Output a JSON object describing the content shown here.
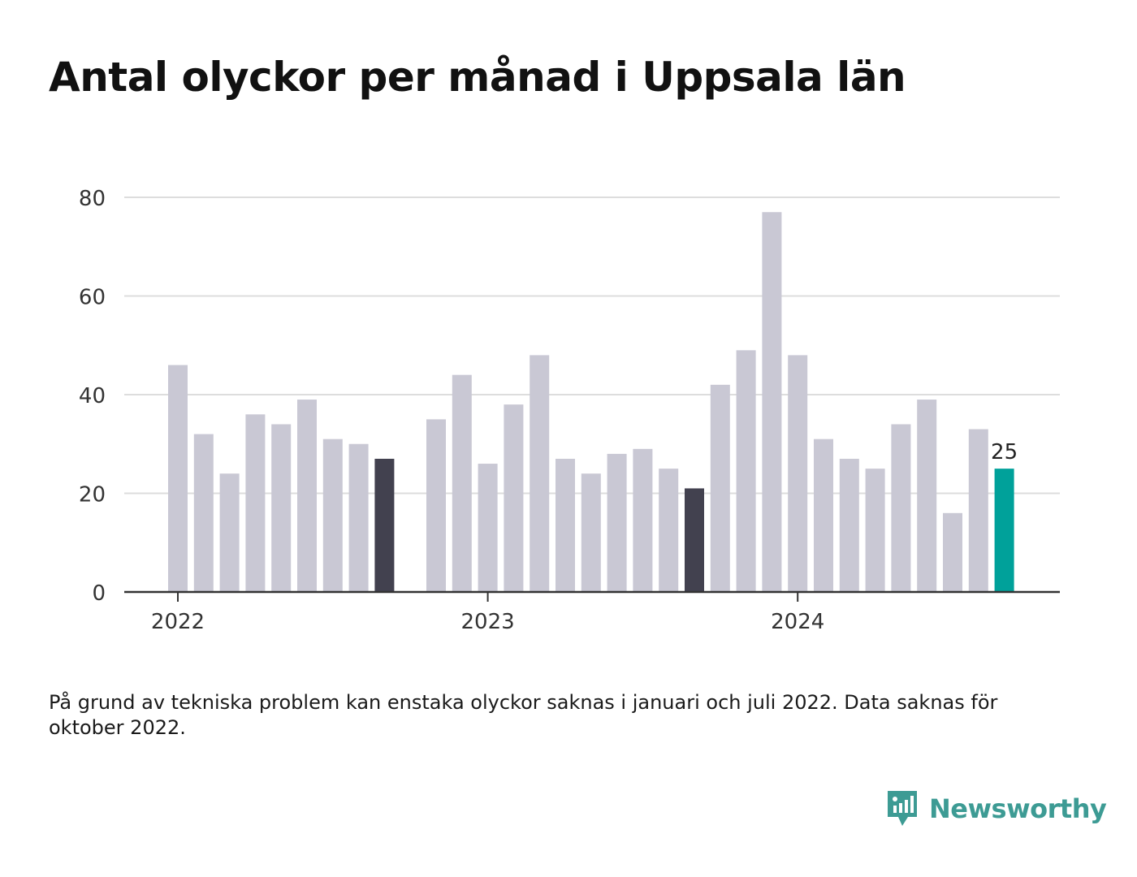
{
  "title": "Antal olyckor per månad i Uppsala län",
  "note": "På grund av tekniska problem kan enstaka olyckor saknas i januari och juli 2022. Data saknas för oktober 2022.",
  "brand": {
    "name": "Newsworthy",
    "icon": "newsworthy-logo-icon",
    "color": "#3d9b94"
  },
  "colors": {
    "bar": "#c9c8d4",
    "bar_dark": "#42414f",
    "bar_highlight": "#00a19a",
    "grid": "#dddddd",
    "axis": "#333333"
  },
  "chart_data": {
    "type": "bar",
    "title": "Antal olyckor per månad i Uppsala län",
    "xlabel": "",
    "ylabel": "",
    "ylim": [
      0,
      80
    ],
    "yticks": [
      "0",
      "20",
      "40",
      "60",
      "80"
    ],
    "xticks": [
      "2022",
      "2023",
      "2024"
    ],
    "grid": true,
    "categories": [
      "2022-01",
      "2022-02",
      "2022-03",
      "2022-04",
      "2022-05",
      "2022-06",
      "2022-07",
      "2022-08",
      "2022-09",
      "2022-10",
      "2022-11",
      "2022-12",
      "2023-01",
      "2023-02",
      "2023-03",
      "2023-04",
      "2023-05",
      "2023-06",
      "2023-07",
      "2023-08",
      "2023-09",
      "2023-10",
      "2023-11",
      "2023-12",
      "2024-01",
      "2024-02",
      "2024-03",
      "2024-04",
      "2024-05",
      "2024-06",
      "2024-07",
      "2024-08",
      "2024-09"
    ],
    "values": [
      46,
      32,
      24,
      36,
      34,
      39,
      31,
      30,
      27,
      null,
      35,
      44,
      26,
      38,
      48,
      27,
      24,
      28,
      29,
      25,
      21,
      42,
      49,
      77,
      48,
      31,
      27,
      25,
      34,
      39,
      16,
      33,
      25
    ],
    "dark_categories": [
      "2022-09",
      "2023-09"
    ],
    "highlight_category": "2024-09",
    "highlight_label": "25"
  }
}
